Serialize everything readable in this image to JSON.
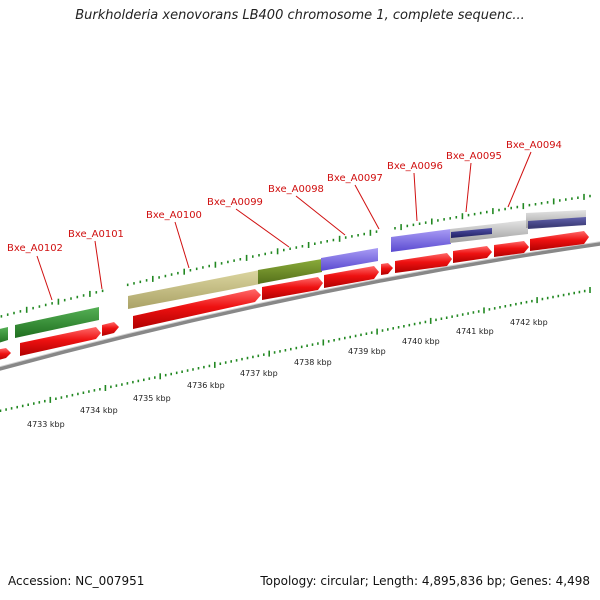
{
  "title": "Burkholderia xenovorans LB400 chromosome 1, complete sequenc...",
  "footer": {
    "accession": "Accession: NC_007951",
    "summary": "Topology: circular; Length: 4,895,836 bp; Genes: 4,498"
  },
  "gene_labels": [
    "Bxe_A0102",
    "Bxe_A0101",
    "Bxe_A0100",
    "Bxe_A0099",
    "Bxe_A0098",
    "Bxe_A0097",
    "Bxe_A0096",
    "Bxe_A0095",
    "Bxe_A0094"
  ],
  "kbp_labels": [
    "4733 kbp",
    "4734 kbp",
    "4735 kbp",
    "4736 kbp",
    "4737 kbp",
    "4738 kbp",
    "4739 kbp",
    "4740 kbp",
    "4741 kbp",
    "4742 kbp"
  ],
  "colors": {
    "gene_label": "#d01010",
    "cds_arrow": "#ee1111",
    "tick": "#228822",
    "backbone": "#888888",
    "feature_green": "#2e8b2e",
    "feature_olive": "#c8c080",
    "feature_darkolive": "#6b8e23",
    "feature_purple": "#7b68ee",
    "feature_navy": "#101070",
    "feature_grey": "#b8b8b8"
  }
}
